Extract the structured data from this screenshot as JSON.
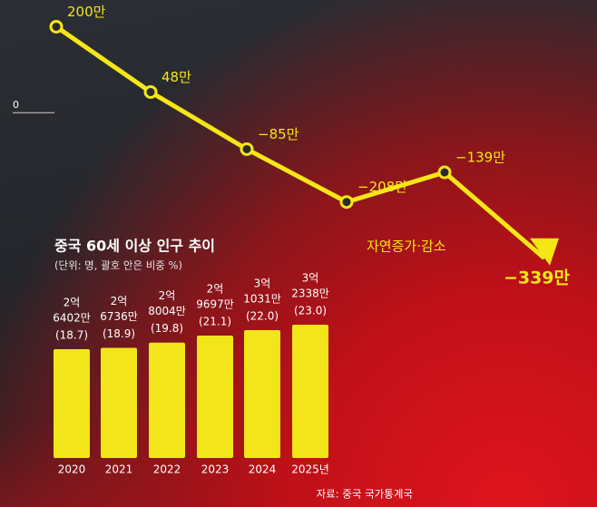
{
  "chart_data": [
    {
      "type": "line",
      "categories": [
        null,
        null,
        null,
        null,
        null,
        null
      ],
      "series": [
        {
          "name": "자연증가·감소",
          "color": "#f5e616",
          "values": [
            200,
            48,
            -85,
            -208,
            -139,
            -339
          ],
          "value_labels": [
            "200만",
            "48만",
            "−85만",
            "−208만",
            "−139만",
            "−339만"
          ]
        }
      ],
      "ylim": [
        -350,
        220
      ],
      "yticks": [
        0
      ]
    },
    {
      "type": "bar",
      "title": "중국 60세 이상 인구 추이",
      "subtitle": "(단위: 명, 괄호 안은 비중 %)",
      "categories": [
        "2020",
        "2021",
        "2022",
        "2023",
        "2024",
        "2025년"
      ],
      "values": [
        26402,
        26736,
        28004,
        29697,
        31031,
        32338
      ],
      "value_labels": [
        [
          "2억",
          "6402만"
        ],
        [
          "2억",
          "6736만"
        ],
        [
          "2억",
          "8004만"
        ],
        [
          "2억",
          "9697만"
        ],
        [
          "3억",
          "1031만"
        ],
        [
          "3억",
          "2338만"
        ]
      ],
      "shares": [
        18.7,
        18.9,
        19.8,
        21.1,
        22.0,
        23.0
      ],
      "share_labels": [
        "(18.7)",
        "(18.9)",
        "(19.8)",
        "(21.1)",
        "(22.0)",
        "(23.0)"
      ],
      "color": "#f2e51a",
      "ylim": [
        0,
        33000
      ],
      "source": "자료: 중국 국가통계국"
    }
  ]
}
